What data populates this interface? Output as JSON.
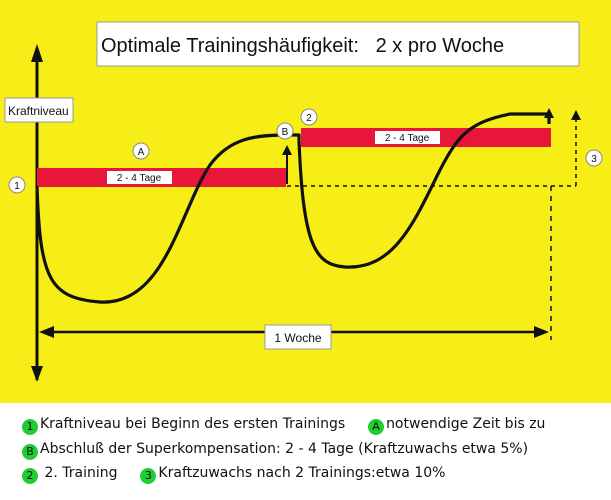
{
  "diagram": {
    "title": "Optimale Trainingshäufigkeit:   2 x pro Woche",
    "y_axis_label": "Kraftniveau",
    "markers": {
      "m1": "1",
      "m2": "2",
      "m3": "3",
      "mA": "A",
      "mB": "B"
    },
    "bar_labels": {
      "first": "2 - 4 Tage",
      "second": "2 - 4 Tage"
    },
    "week_label": "1 Woche",
    "colors": {
      "background": "#f7ee18",
      "bar": "#e8173a",
      "curve": "#111111",
      "legend_badge": "#22cc33"
    }
  },
  "legend": {
    "row1": [
      {
        "badge": "1",
        "text": "Kraftniveau bei Beginn des ersten Trainings"
      },
      {
        "badge": "A",
        "text": "notwendige Zeit bis zu"
      }
    ],
    "row2": [
      {
        "badge": "B",
        "text": "Abschluß der Superkompensation: 2 - 4 Tage (Kraftzuwachs etwa 5%)"
      }
    ],
    "row3": [
      {
        "badge": "2",
        "text": "2. Training"
      },
      {
        "badge": "3",
        "text": "Kraftzuwachs nach 2 Trainings:etwa 10%"
      }
    ]
  }
}
